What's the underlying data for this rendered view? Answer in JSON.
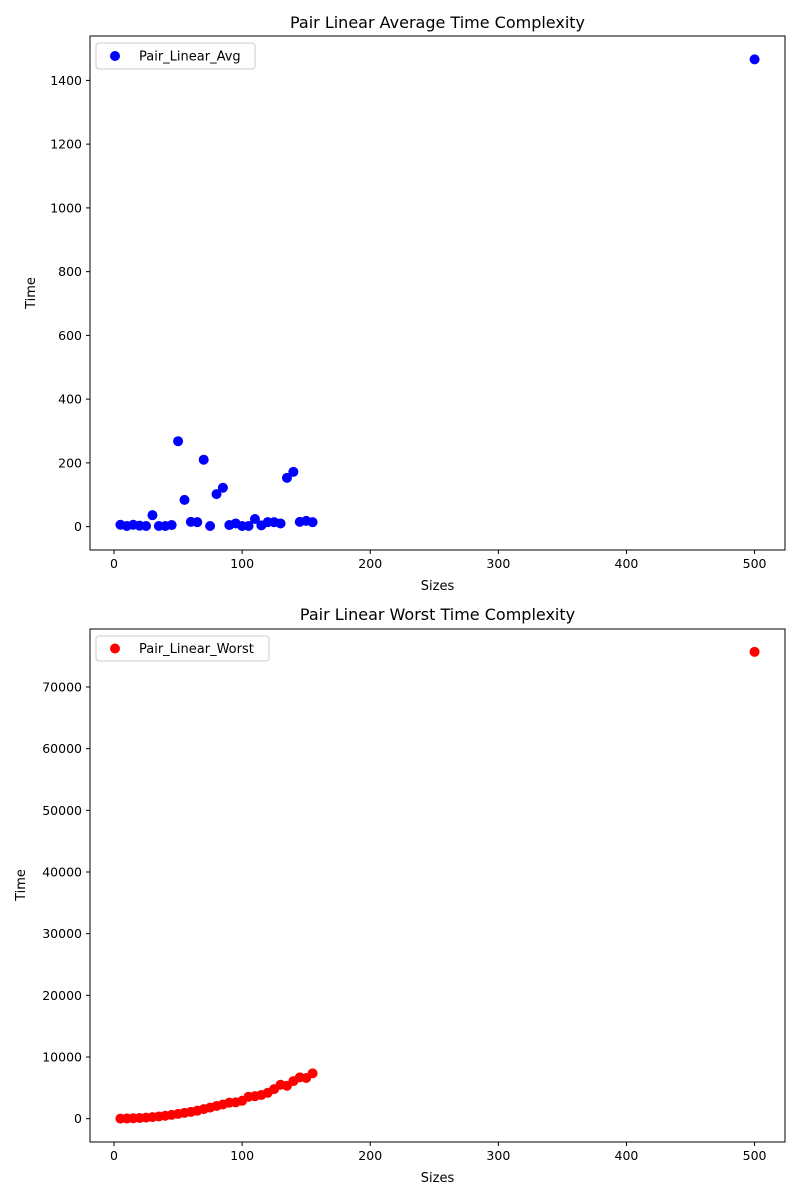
{
  "chart_data": [
    {
      "type": "scatter",
      "title": "Pair Linear Average Time Complexity",
      "xlabel": "Sizes",
      "ylabel": "Time",
      "xlim": [
        -18.75,
        523.75
      ],
      "ylim": [
        -73.3,
        1539.3
      ],
      "xticks": [
        0,
        100,
        200,
        300,
        400,
        500
      ],
      "yticks": [
        0,
        200,
        400,
        600,
        800,
        1000,
        1200,
        1400
      ],
      "legend_position": "top-left",
      "grid": false,
      "color": "#0000ff",
      "series": [
        {
          "name": "Pair_Linear_Avg",
          "x": [
            5,
            10,
            15,
            20,
            25,
            30,
            35,
            40,
            45,
            50,
            55,
            60,
            65,
            70,
            75,
            80,
            85,
            90,
            95,
            100,
            105,
            110,
            115,
            120,
            125,
            130,
            135,
            140,
            145,
            150,
            155,
            500
          ],
          "y": [
            6,
            2,
            6,
            3,
            2,
            36,
            2,
            2,
            5,
            268,
            84,
            15,
            14,
            210,
            2,
            102,
            122,
            5,
            10,
            2,
            2,
            24,
            4,
            14,
            14,
            10,
            153,
            172,
            15,
            18,
            14,
            1466
          ]
        }
      ]
    },
    {
      "type": "scatter",
      "title": "Pair Linear Worst Time Complexity",
      "xlabel": "Sizes",
      "ylabel": "Time",
      "xlim": [
        -18.75,
        523.75
      ],
      "ylim": [
        -3780,
        79400
      ],
      "xticks": [
        0,
        100,
        200,
        300,
        400,
        500
      ],
      "yticks": [
        0,
        10000,
        20000,
        30000,
        40000,
        50000,
        60000,
        70000
      ],
      "legend_position": "top-left",
      "grid": false,
      "color": "#ff0000",
      "series": [
        {
          "name": "Pair_Linear_Worst",
          "x": [
            5,
            10,
            15,
            20,
            25,
            30,
            35,
            40,
            45,
            50,
            55,
            60,
            65,
            70,
            75,
            80,
            85,
            90,
            95,
            100,
            105,
            110,
            115,
            120,
            125,
            130,
            135,
            140,
            145,
            150,
            155,
            500
          ],
          "y": [
            20,
            40,
            80,
            120,
            180,
            260,
            360,
            480,
            620,
            780,
            940,
            1100,
            1300,
            1550,
            1800,
            2050,
            2300,
            2600,
            2650,
            2900,
            3550,
            3650,
            3850,
            4200,
            4800,
            5500,
            5350,
            6100,
            6700,
            6600,
            7350,
            75700
          ]
        }
      ]
    }
  ]
}
